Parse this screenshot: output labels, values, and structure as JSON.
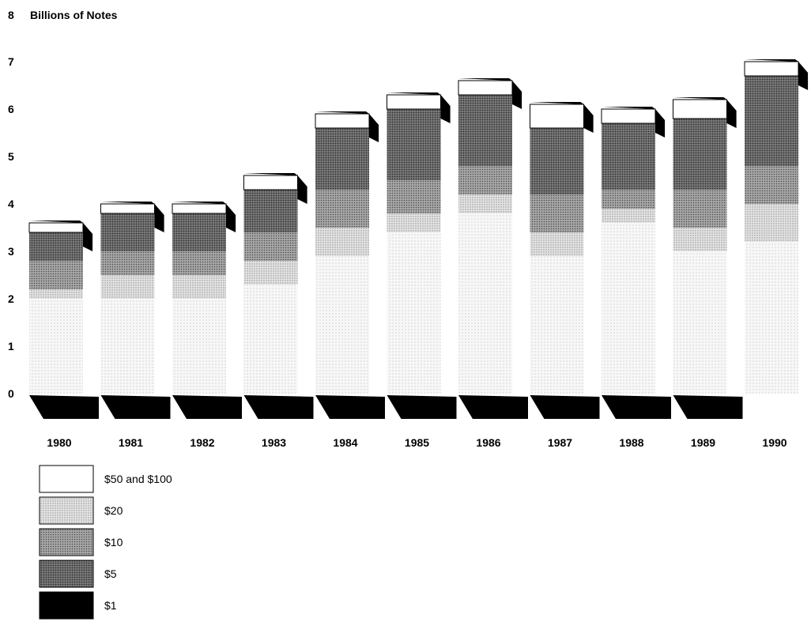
{
  "chart_data": {
    "type": "bar",
    "stacked": true,
    "title": "Billions of Notes",
    "ylim": [
      0,
      8
    ],
    "y_ticks": [
      "0",
      "1",
      "2",
      "3",
      "4",
      "5",
      "6",
      "7",
      "8"
    ],
    "categories": [
      "1980",
      "1981",
      "1982",
      "1983",
      "1984",
      "1985",
      "1986",
      "1987",
      "1988",
      "1989",
      "1990"
    ],
    "series": [
      {
        "name": "$1",
        "values": [
          2.0,
          2.0,
          2.0,
          2.3,
          2.9,
          3.4,
          3.8,
          2.9,
          3.6,
          3.0,
          3.2
        ]
      },
      {
        "name": "$5",
        "values": [
          0.2,
          0.5,
          0.5,
          0.5,
          0.6,
          0.4,
          0.4,
          0.5,
          0.3,
          0.5,
          0.8
        ]
      },
      {
        "name": "$10",
        "values": [
          0.6,
          0.5,
          0.5,
          0.6,
          0.8,
          0.7,
          0.6,
          0.8,
          0.4,
          0.8,
          0.8
        ]
      },
      {
        "name": "$20",
        "values": [
          0.6,
          0.8,
          0.8,
          0.9,
          1.3,
          1.5,
          1.5,
          1.4,
          1.4,
          1.5,
          1.9
        ]
      },
      {
        "name": "$50 and $100",
        "values": [
          0.2,
          0.2,
          0.2,
          0.3,
          0.3,
          0.3,
          0.3,
          0.5,
          0.3,
          0.4,
          0.3
        ]
      }
    ],
    "legend": {
      "position": "bottom-left",
      "entries": [
        "$50 and $100",
        "$20",
        "$10",
        "$5",
        "$1"
      ]
    },
    "colors": {
      "$1": "#f1f1f1",
      "$5": "#d2d2d2",
      "$10": "#9a9a9a",
      "$20": "#6b6b6b",
      "$50 and $100": "#ffffff",
      "shadow": "#000000"
    }
  }
}
